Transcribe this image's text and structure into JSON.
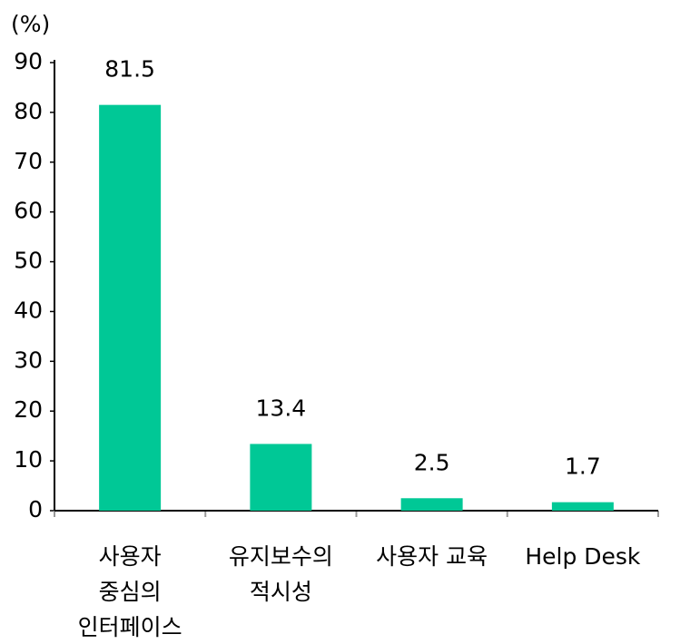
{
  "chart_data": {
    "type": "bar",
    "y_unit": "(%)",
    "categories": [
      [
        "사용자",
        "중심의",
        "인터페이스"
      ],
      [
        "유지보수의",
        "적시성"
      ],
      [
        "사용자 교육"
      ],
      [
        "Help Desk"
      ]
    ],
    "values": [
      81.5,
      13.4,
      2.5,
      1.7
    ],
    "color": "#00c896",
    "ylim": [
      0,
      90
    ],
    "yticks": [
      0,
      10,
      20,
      30,
      40,
      50,
      60,
      70,
      80,
      90
    ],
    "grid": false
  }
}
